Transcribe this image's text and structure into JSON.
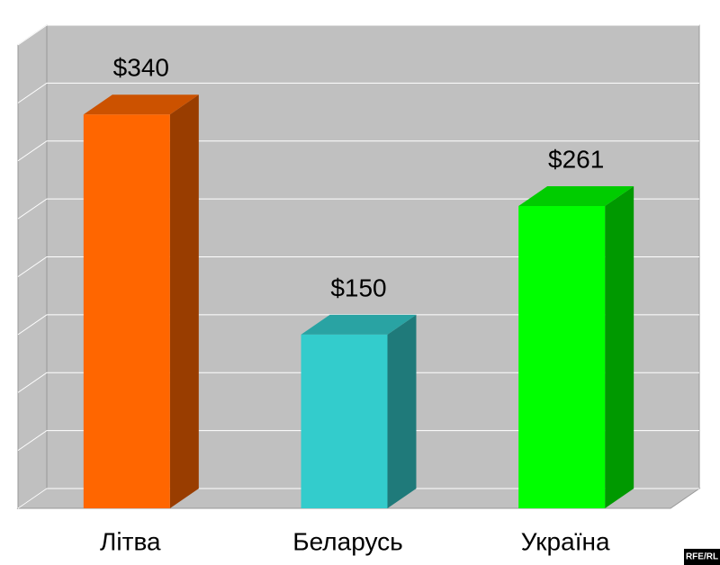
{
  "chart_data": {
    "type": "bar3d",
    "categories": [
      "Літва",
      "Беларусь",
      "Україна"
    ],
    "values": [
      340,
      150,
      261
    ],
    "value_labels": [
      "$340",
      "$150",
      "$261"
    ],
    "colors": [
      "#ff6600",
      "#33cccc",
      "#00ff00"
    ],
    "ylim": [
      0,
      400
    ],
    "yticks": [
      0,
      50,
      100,
      150,
      200,
      250,
      300,
      350,
      400
    ],
    "grid": true,
    "watermark": "RFE/RL"
  }
}
